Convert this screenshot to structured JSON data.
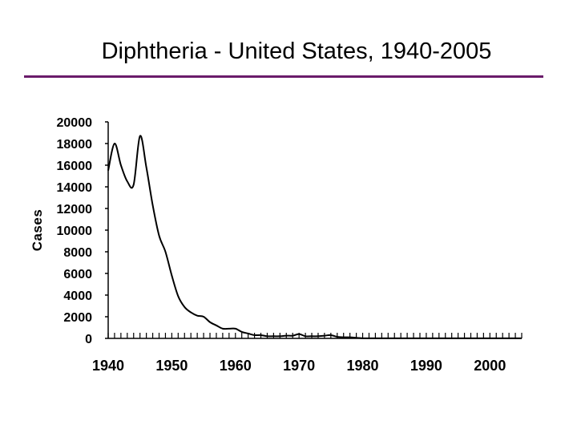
{
  "colors": {
    "accent_rule": "#6a1b6a",
    "line": "#000000",
    "text": "#000000",
    "background": "#ffffff"
  },
  "chart_data": {
    "type": "line",
    "title": "Diphtheria - United States, 1940-2005",
    "xlabel": "",
    "ylabel": "Cases",
    "xlim": [
      1940,
      2005
    ],
    "ylim": [
      0,
      20000
    ],
    "y_ticks": [
      0,
      2000,
      4000,
      6000,
      8000,
      10000,
      12000,
      14000,
      16000,
      18000,
      20000
    ],
    "y_tick_labels": [
      "0",
      "2000",
      "4000",
      "6000",
      "8000",
      "10000",
      "12000",
      "14000",
      "16000",
      "18000",
      "20000"
    ],
    "x_ticks": [
      1940,
      1950,
      1960,
      1970,
      1980,
      1990,
      2000
    ],
    "x_tick_labels": [
      "1940",
      "1950",
      "1960",
      "1970",
      "1980",
      "1990",
      "2000"
    ],
    "x_minor_step": 1,
    "grid": false,
    "series": [
      {
        "x": [
          1940,
          1941,
          1942,
          1943,
          1944,
          1945,
          1946,
          1947,
          1948,
          1949,
          1950,
          1951,
          1952,
          1953,
          1954,
          1955,
          1956,
          1957,
          1958,
          1959,
          1960,
          1961,
          1962,
          1963,
          1964,
          1965,
          1966,
          1967,
          1968,
          1969,
          1970,
          1971,
          1972,
          1973,
          1974,
          1975,
          1976,
          1977,
          1978,
          1979,
          1980,
          1981,
          1982,
          1983,
          1984,
          1985,
          1986,
          1987,
          1988,
          1989,
          1990,
          1991,
          1992,
          1993,
          1994,
          1995,
          1996,
          1997,
          1998,
          1999,
          2000,
          2001,
          2002,
          2003,
          2004,
          2005
        ],
        "values": [
          15500,
          18000,
          16000,
          14500,
          14200,
          18700,
          15800,
          12300,
          9500,
          8000,
          5800,
          3900,
          2900,
          2400,
          2100,
          2000,
          1500,
          1200,
          900,
          900,
          900,
          600,
          450,
          300,
          300,
          200,
          200,
          200,
          250,
          250,
          400,
          200,
          200,
          200,
          250,
          300,
          150,
          100,
          100,
          50,
          10,
          5,
          5,
          5,
          5,
          5,
          5,
          5,
          5,
          5,
          5,
          5,
          5,
          5,
          5,
          5,
          5,
          5,
          5,
          5,
          5,
          5,
          5,
          5,
          5,
          5
        ]
      }
    ]
  }
}
